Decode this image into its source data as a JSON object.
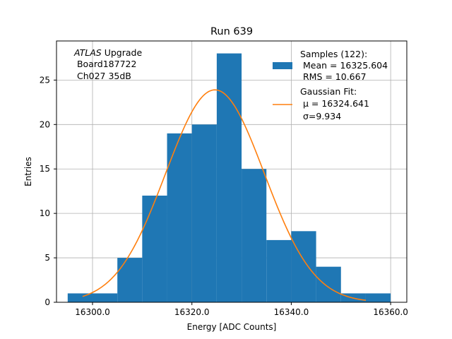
{
  "chart_data": {
    "type": "bar",
    "title": "Run 639",
    "xlabel": "Energy [ADC Counts]",
    "ylabel": "Entries",
    "xlim": [
      16292.75,
      16363.25
    ],
    "ylim": [
      0,
      29.4
    ],
    "x_ticks": [
      16300.0,
      16320.0,
      16340.0,
      16360.0
    ],
    "x_tick_labels": [
      "16300.0",
      "16320.0",
      "16340.0",
      "16360.0"
    ],
    "y_ticks": [
      0,
      5,
      10,
      15,
      20,
      25
    ],
    "y_tick_labels": [
      "0",
      "5",
      "10",
      "15",
      "20",
      "25"
    ],
    "grid": true,
    "bins": [
      {
        "x0": 16295,
        "x1": 16300,
        "value": 1
      },
      {
        "x0": 16300,
        "x1": 16305,
        "value": 1
      },
      {
        "x0": 16305,
        "x1": 16310,
        "value": 5
      },
      {
        "x0": 16310,
        "x1": 16315,
        "value": 12
      },
      {
        "x0": 16315,
        "x1": 16320,
        "value": 19
      },
      {
        "x0": 16320,
        "x1": 16325,
        "value": 20
      },
      {
        "x0": 16325,
        "x1": 16330,
        "value": 28
      },
      {
        "x0": 16330,
        "x1": 16335,
        "value": 15
      },
      {
        "x0": 16335,
        "x1": 16340,
        "value": 7
      },
      {
        "x0": 16340,
        "x1": 16345,
        "value": 8
      },
      {
        "x0": 16345,
        "x1": 16350,
        "value": 4
      },
      {
        "x0": 16350,
        "x1": 16355,
        "value": 1
      },
      {
        "x0": 16355,
        "x1": 16360,
        "value": 1
      }
    ],
    "fit": {
      "type": "gaussian",
      "mu": 16324.641,
      "sigma": 9.934,
      "amplitude": 23.9,
      "x_range": [
        16298,
        16355
      ]
    },
    "annotation_lines": [
      "ATLAS Upgrade",
      " Board187722",
      " Ch027 35dB"
    ],
    "legend": {
      "placement": "top-right",
      "samples_lines": [
        "Samples (122):",
        " Mean = 16325.604",
        " RMS = 10.667"
      ],
      "fit_lines": [
        "Gaussian Fit:",
        " μ = 16324.641",
        " σ=9.934"
      ]
    },
    "colors": {
      "bar": "#1f77b4",
      "fit": "#ff7f0e",
      "grid": "#b0b0b0"
    }
  }
}
